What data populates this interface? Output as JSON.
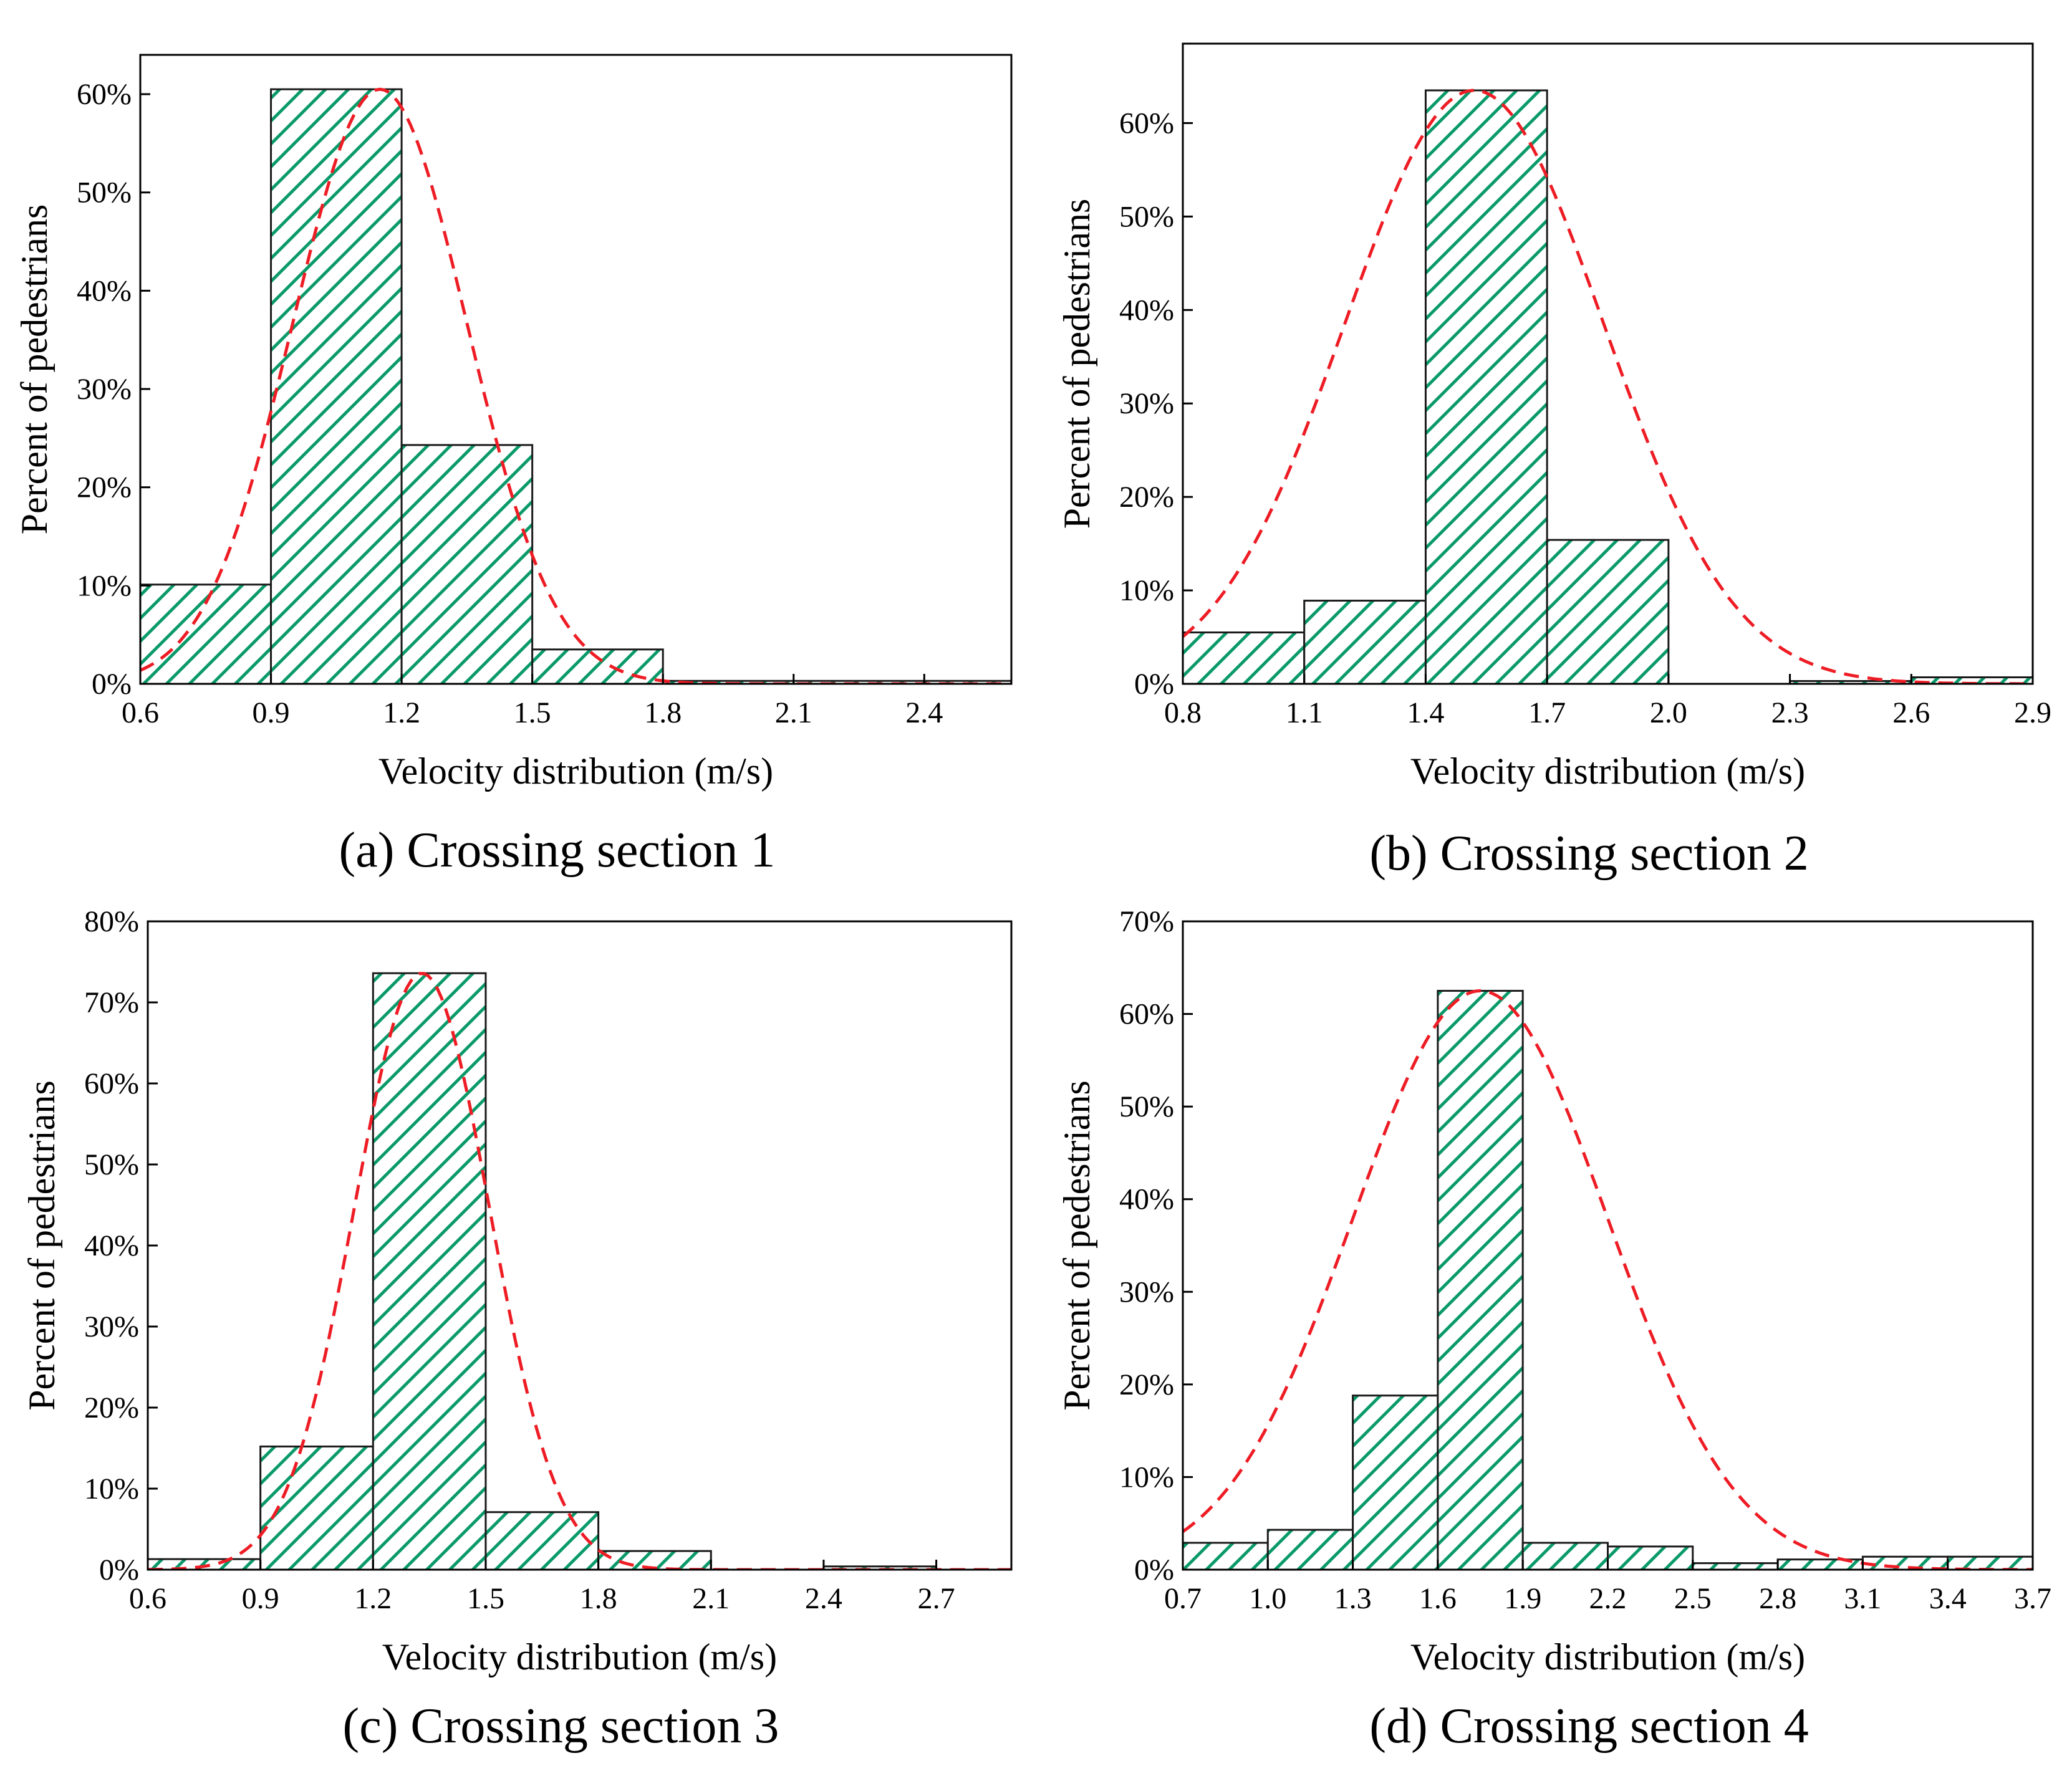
{
  "figure": {
    "colors": {
      "bar_edge": "#1a1a1a",
      "hatch": "#0a9a6a",
      "fit_line": "#ee1c24",
      "axis": "#000000"
    }
  },
  "chart_data": [
    {
      "type": "bar",
      "caption": "(a) Crossing section 1",
      "xlabel": "Velocity distribution (m/s)",
      "ylabel": "Percent of pedestrians",
      "xlim": [
        0.6,
        2.6
      ],
      "ylim": [
        0,
        0.64
      ],
      "xticks": [
        "0.6",
        "0.9",
        "1.2",
        "1.5",
        "1.8",
        "2.1",
        "2.4"
      ],
      "yticks": [
        "0%",
        "10%",
        "20%",
        "30%",
        "40%",
        "50%",
        "60%"
      ],
      "bins": [
        {
          "from": 0.6,
          "to": 0.9,
          "value": 0.101
        },
        {
          "from": 0.9,
          "to": 1.2,
          "value": 0.605
        },
        {
          "from": 1.2,
          "to": 1.5,
          "value": 0.243
        },
        {
          "from": 1.5,
          "to": 1.8,
          "value": 0.035
        },
        {
          "from": 1.8,
          "to": 2.1,
          "value": 0.003
        },
        {
          "from": 2.1,
          "to": 2.4,
          "value": 0.003
        },
        {
          "from": 2.4,
          "to": 2.6,
          "value": 0.003
        }
      ],
      "fit": {
        "type": "normal",
        "mean": 1.15,
        "sd": 0.2,
        "peak": 0.605
      }
    },
    {
      "type": "bar",
      "caption": "(b) Crossing section 2",
      "xlabel": "Velocity distribution (m/s)",
      "ylabel": "Percent of pedestrians",
      "xlim": [
        0.8,
        2.9
      ],
      "ylim": [
        0,
        0.685
      ],
      "xticks": [
        "0.8",
        "1.1",
        "1.4",
        "1.7",
        "2.0",
        "2.3",
        "2.6",
        "2.9"
      ],
      "yticks": [
        "0%",
        "10%",
        "20%",
        "30%",
        "40%",
        "50%",
        "60%"
      ],
      "bins": [
        {
          "from": 0.8,
          "to": 1.1,
          "value": 0.055
        },
        {
          "from": 1.1,
          "to": 1.4,
          "value": 0.089
        },
        {
          "from": 1.4,
          "to": 1.7,
          "value": 0.635
        },
        {
          "from": 1.7,
          "to": 2.0,
          "value": 0.154
        },
        {
          "from": 2.3,
          "to": 2.6,
          "value": 0.003
        },
        {
          "from": 2.6,
          "to": 2.9,
          "value": 0.007
        }
      ],
      "fit": {
        "type": "normal",
        "mean": 1.52,
        "sd": 0.32,
        "peak": 0.635
      }
    },
    {
      "type": "bar",
      "caption": "(c) Crossing section 3",
      "xlabel": "Velocity distribution (m/s)",
      "ylabel": "Percent of pedestrians",
      "xlim": [
        0.6,
        2.9
      ],
      "ylim": [
        0,
        0.8
      ],
      "xticks": [
        "0.6",
        "0.9",
        "1.2",
        "1.5",
        "1.8",
        "2.1",
        "2.4",
        "2.7"
      ],
      "yticks": [
        "0%",
        "10%",
        "20%",
        "30%",
        "40%",
        "50%",
        "60%",
        "70%",
        "80%"
      ],
      "bins": [
        {
          "from": 0.6,
          "to": 0.9,
          "value": 0.013
        },
        {
          "from": 0.9,
          "to": 1.2,
          "value": 0.152
        },
        {
          "from": 1.2,
          "to": 1.5,
          "value": 0.736
        },
        {
          "from": 1.5,
          "to": 1.8,
          "value": 0.071
        },
        {
          "from": 1.8,
          "to": 2.1,
          "value": 0.023
        },
        {
          "from": 2.4,
          "to": 2.7,
          "value": 0.004
        }
      ],
      "fit": {
        "type": "normal",
        "mean": 1.33,
        "sd": 0.18,
        "peak": 0.736
      }
    },
    {
      "type": "bar",
      "caption": "(d) Crossing section 4",
      "xlabel": "Velocity distribution (m/s)",
      "ylabel": "Percent of pedestrians",
      "xlim": [
        0.7,
        3.7
      ],
      "ylim": [
        0,
        0.7
      ],
      "xticks": [
        "0.7",
        "1.0",
        "1.3",
        "1.6",
        "1.9",
        "2.2",
        "2.5",
        "2.8",
        "3.1",
        "3.4",
        "3.7"
      ],
      "yticks": [
        "0%",
        "10%",
        "20%",
        "30%",
        "40%",
        "50%",
        "60%",
        "70%"
      ],
      "bins": [
        {
          "from": 0.7,
          "to": 1.0,
          "value": 0.029
        },
        {
          "from": 1.0,
          "to": 1.3,
          "value": 0.043
        },
        {
          "from": 1.3,
          "to": 1.6,
          "value": 0.188
        },
        {
          "from": 1.6,
          "to": 1.9,
          "value": 0.625
        },
        {
          "from": 1.9,
          "to": 2.2,
          "value": 0.029
        },
        {
          "from": 2.2,
          "to": 2.5,
          "value": 0.025
        },
        {
          "from": 2.5,
          "to": 2.8,
          "value": 0.007
        },
        {
          "from": 2.8,
          "to": 3.1,
          "value": 0.011
        },
        {
          "from": 3.1,
          "to": 3.4,
          "value": 0.014
        },
        {
          "from": 3.4,
          "to": 3.7,
          "value": 0.014
        }
      ],
      "fit": {
        "type": "normal",
        "mean": 1.75,
        "sd": 0.45,
        "peak": 0.625
      }
    }
  ]
}
